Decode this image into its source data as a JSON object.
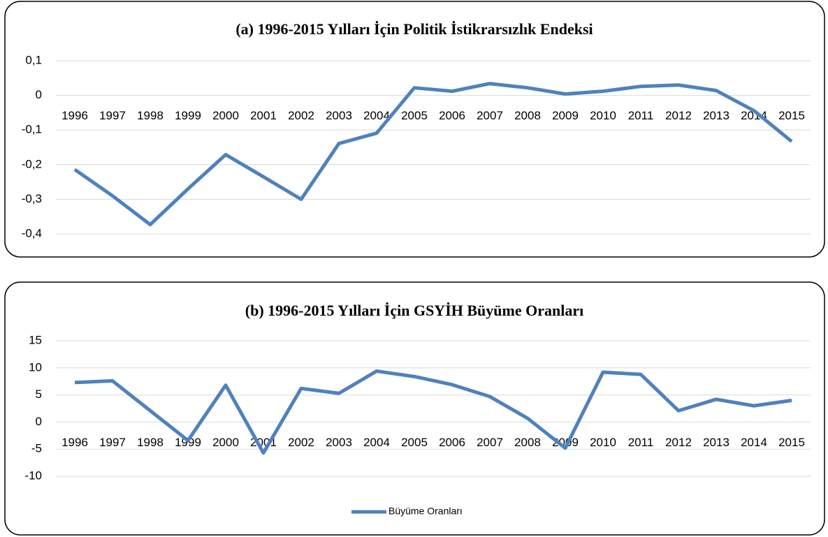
{
  "chart_data": [
    {
      "type": "line",
      "title": "(a) 1996-2015 Yılları İçin Politik İstikrarsızlık Endeksi",
      "categories": [
        "1996",
        "1997",
        "1998",
        "1999",
        "2000",
        "2001",
        "2002",
        "2003",
        "2004",
        "2005",
        "2006",
        "2007",
        "2008",
        "2009",
        "2010",
        "2011",
        "2012",
        "2013",
        "2014",
        "2015"
      ],
      "values": [
        -0.214,
        -0.29,
        -0.373,
        -0.27,
        -0.171,
        -0.235,
        -0.3,
        -0.139,
        -0.109,
        0.022,
        0.012,
        0.034,
        0.022,
        0.004,
        0.012,
        0.026,
        0.03,
        0.014,
        -0.044,
        -0.133
      ],
      "color": "#4f81bd",
      "ylim": [
        -0.4,
        0.1
      ],
      "yticks": [
        {
          "value": -0.4,
          "label": "-0,4"
        },
        {
          "value": -0.3,
          "label": "-0,3"
        },
        {
          "value": -0.2,
          "label": "-0,2"
        },
        {
          "value": -0.1,
          "label": "-0,1"
        },
        0,
        {
          "value": 0.1,
          "label": "0,1"
        }
      ],
      "grid": true
    },
    {
      "type": "line",
      "title": "(b) 1996-2015 Yılları İçin GSYİH Büyüme Oranları",
      "categories": [
        "1996",
        "1997",
        "1998",
        "1999",
        "2000",
        "2001",
        "2002",
        "2003",
        "2004",
        "2005",
        "2006",
        "2007",
        "2008",
        "2009",
        "2010",
        "2011",
        "2012",
        "2013",
        "2014",
        "2015"
      ],
      "series": [
        {
          "name": "Büyüme Oranları",
          "color": "#4f81bd",
          "values": [
            7.3,
            7.6,
            2.1,
            -3.4,
            6.8,
            -5.7,
            6.2,
            5.3,
            9.4,
            8.4,
            6.9,
            4.7,
            0.7,
            -4.8,
            9.2,
            8.8,
            2.1,
            4.2,
            3.0,
            4.0
          ]
        }
      ],
      "ylim": [
        -10,
        15
      ],
      "yticks": [
        -10,
        -5,
        0,
        5,
        10,
        15
      ],
      "grid": true,
      "legend": "bottom"
    }
  ]
}
